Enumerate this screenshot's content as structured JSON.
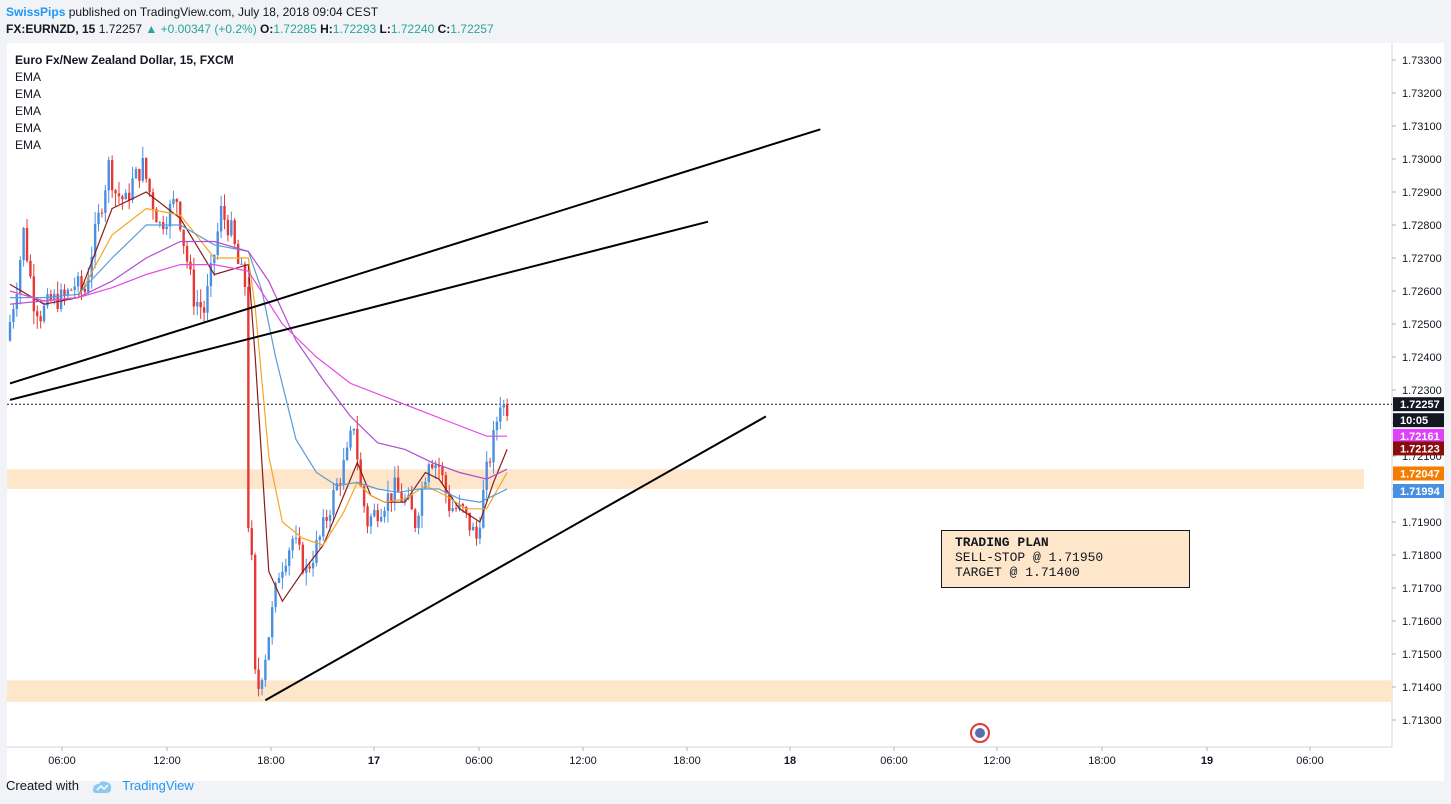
{
  "header": {
    "author": "SwissPips",
    "published_text": "published on TradingView.com, July 18, 2018 09:04 CEST",
    "symbol": "FX:EURNZD, 15",
    "last": "1.72257",
    "change": "▲ +0.00347 (+0.2%)",
    "o_label": "O:",
    "o": "1.72285",
    "h_label": "H:",
    "h": "1.72293",
    "l_label": "L:",
    "l": "1.72240",
    "c_label": "C:",
    "c": "1.72257"
  },
  "legend": {
    "title": "Euro Fx/New Zealand Dollar, 15, FXCM",
    "indicators": [
      "EMA",
      "EMA",
      "EMA",
      "EMA",
      "EMA"
    ]
  },
  "annotation": {
    "title": "TRADING PLAN",
    "line1": "SELL-STOP @ 1.71950",
    "line2": "TARGET @ 1.71400"
  },
  "footer": {
    "created_with": "Created with",
    "brand": "TradingView"
  },
  "price_labels": [
    {
      "text": "1.72257",
      "bg": "#131722"
    },
    {
      "text": "10:05",
      "bg": "#131722"
    },
    {
      "text": "1.72161",
      "bg": "#e040fb"
    },
    {
      "text": "1.72123",
      "bg": "#880e0e"
    },
    {
      "text": "1.72047",
      "bg": "#f57c00"
    },
    {
      "text": "1.71994",
      "bg": "#4a90e2"
    }
  ],
  "colors": {
    "up": "#4a90e2",
    "down": "#e53935",
    "zone": "#fde6c9",
    "ema_fast": "#8b1a1a",
    "ema_orange": "#f5a623",
    "ema_blue": "#5b9bd5",
    "ema_purple": "#b34dd1",
    "ema_magenta": "#e54ae5",
    "trendline": "#000000"
  },
  "chart_data": {
    "type": "candlestick",
    "title": "Euro Fx/New Zealand Dollar, 15, FXCM",
    "y_ticks": [
      "1.73300",
      "1.73200",
      "1.73100",
      "1.73000",
      "1.72900",
      "1.72800",
      "1.72700",
      "1.72600",
      "1.72500",
      "1.72400",
      "1.72300",
      "1.72200",
      "1.72100",
      "1.72000",
      "1.71900",
      "1.71800",
      "1.71700",
      "1.71600",
      "1.71500",
      "1.71400",
      "1.71300"
    ],
    "x_ticks": [
      "06:00",
      "12:00",
      "18:00",
      "17",
      "06:00",
      "12:00",
      "18:00",
      "18",
      "06:00",
      "12:00",
      "18:00",
      "19",
      "06:00"
    ],
    "ylim": [
      1.7127,
      1.7338
    ],
    "current_price": 1.72257,
    "zones": [
      {
        "from": 1.72,
        "to": 1.7206
      },
      {
        "from": 1.71355,
        "to": 1.7142
      }
    ],
    "price_path": [
      [
        0,
        1.7245
      ],
      [
        3,
        1.7262
      ],
      [
        5,
        1.7278
      ],
      [
        8,
        1.7257
      ],
      [
        10,
        1.7253
      ],
      [
        13,
        1.7257
      ],
      [
        17,
        1.7258
      ],
      [
        20,
        1.7262
      ],
      [
        23,
        1.726
      ],
      [
        25,
        1.7272
      ],
      [
        28,
        1.7287
      ],
      [
        30,
        1.7298
      ],
      [
        32,
        1.729
      ],
      [
        35,
        1.7287
      ],
      [
        37,
        1.7293
      ],
      [
        40,
        1.7298
      ],
      [
        42,
        1.729
      ],
      [
        45,
        1.728
      ],
      [
        47,
        1.7283
      ],
      [
        50,
        1.7288
      ],
      [
        52,
        1.7275
      ],
      [
        55,
        1.7258
      ],
      [
        58,
        1.7254
      ],
      [
        60,
        1.7265
      ],
      [
        63,
        1.7284
      ],
      [
        66,
        1.7278
      ],
      [
        68,
        1.7268
      ],
      [
        70,
        1.7262
      ],
      [
        71,
        1.719
      ],
      [
        72,
        1.7146
      ],
      [
        74,
        1.714
      ],
      [
        76,
        1.715
      ],
      [
        80,
        1.7175
      ],
      [
        84,
        1.7185
      ],
      [
        88,
        1.7175
      ],
      [
        92,
        1.7185
      ],
      [
        96,
        1.7198
      ],
      [
        100,
        1.721
      ],
      [
        102,
        1.722
      ],
      [
        104,
        1.72
      ],
      [
        106,
        1.719
      ],
      [
        110,
        1.7195
      ],
      [
        114,
        1.72
      ],
      [
        118,
        1.7195
      ],
      [
        120,
        1.719
      ],
      [
        124,
        1.721
      ],
      [
        127,
        1.7207
      ],
      [
        130,
        1.7195
      ],
      [
        134,
        1.7193
      ],
      [
        138,
        1.7185
      ],
      [
        141,
        1.7205
      ],
      [
        143,
        1.7215
      ],
      [
        145,
        1.7227
      ],
      [
        146,
        1.7225
      ]
    ],
    "emas": [
      {
        "name": "EMA",
        "color": "#8b1a1a",
        "path": [
          [
            0,
            1.7262
          ],
          [
            10,
            1.7256
          ],
          [
            20,
            1.7258
          ],
          [
            30,
            1.7285
          ],
          [
            40,
            1.729
          ],
          [
            50,
            1.7282
          ],
          [
            60,
            1.7265
          ],
          [
            70,
            1.7268
          ],
          [
            72,
            1.724
          ],
          [
            76,
            1.7175
          ],
          [
            80,
            1.7166
          ],
          [
            86,
            1.7175
          ],
          [
            92,
            1.7183
          ],
          [
            98,
            1.7198
          ],
          [
            102,
            1.7208
          ],
          [
            106,
            1.7198
          ],
          [
            110,
            1.7196
          ],
          [
            116,
            1.7196
          ],
          [
            122,
            1.7205
          ],
          [
            126,
            1.7203
          ],
          [
            132,
            1.7194
          ],
          [
            138,
            1.719
          ],
          [
            142,
            1.7202
          ],
          [
            146,
            1.7212
          ]
        ]
      },
      {
        "name": "EMA",
        "color": "#f5a623",
        "path": [
          [
            0,
            1.726
          ],
          [
            10,
            1.7257
          ],
          [
            20,
            1.7258
          ],
          [
            30,
            1.7277
          ],
          [
            40,
            1.7285
          ],
          [
            50,
            1.7283
          ],
          [
            60,
            1.727
          ],
          [
            70,
            1.727
          ],
          [
            72,
            1.7255
          ],
          [
            76,
            1.721
          ],
          [
            80,
            1.719
          ],
          [
            86,
            1.7185
          ],
          [
            92,
            1.7183
          ],
          [
            98,
            1.7193
          ],
          [
            102,
            1.7202
          ],
          [
            106,
            1.7198
          ],
          [
            110,
            1.7196
          ],
          [
            116,
            1.7197
          ],
          [
            122,
            1.7201
          ],
          [
            128,
            1.7198
          ],
          [
            134,
            1.7194
          ],
          [
            140,
            1.7194
          ],
          [
            146,
            1.7205
          ]
        ]
      },
      {
        "name": "EMA",
        "color": "#5b9bd5",
        "path": [
          [
            0,
            1.7258
          ],
          [
            10,
            1.7258
          ],
          [
            20,
            1.7259
          ],
          [
            30,
            1.727
          ],
          [
            40,
            1.728
          ],
          [
            50,
            1.728
          ],
          [
            60,
            1.7274
          ],
          [
            70,
            1.7272
          ],
          [
            74,
            1.726
          ],
          [
            78,
            1.724
          ],
          [
            84,
            1.7215
          ],
          [
            90,
            1.7205
          ],
          [
            96,
            1.7201
          ],
          [
            102,
            1.7202
          ],
          [
            108,
            1.72
          ],
          [
            114,
            1.7199
          ],
          [
            120,
            1.72
          ],
          [
            126,
            1.72
          ],
          [
            132,
            1.7197
          ],
          [
            138,
            1.7196
          ],
          [
            146,
            1.72
          ]
        ]
      },
      {
        "name": "EMA",
        "color": "#b34dd1",
        "path": [
          [
            0,
            1.7256
          ],
          [
            10,
            1.7257
          ],
          [
            20,
            1.7258
          ],
          [
            30,
            1.7263
          ],
          [
            40,
            1.727
          ],
          [
            50,
            1.7275
          ],
          [
            60,
            1.7275
          ],
          [
            70,
            1.7272
          ],
          [
            76,
            1.7263
          ],
          [
            84,
            1.7245
          ],
          [
            92,
            1.7233
          ],
          [
            100,
            1.7222
          ],
          [
            108,
            1.7214
          ],
          [
            116,
            1.7212
          ],
          [
            124,
            1.7208
          ],
          [
            132,
            1.7205
          ],
          [
            140,
            1.7203
          ],
          [
            146,
            1.7206
          ]
        ]
      },
      {
        "name": "EMA",
        "color": "#e54ae5",
        "path": [
          [
            0,
            1.726
          ],
          [
            10,
            1.7257
          ],
          [
            20,
            1.7258
          ],
          [
            30,
            1.7261
          ],
          [
            40,
            1.7265
          ],
          [
            50,
            1.7268
          ],
          [
            60,
            1.7268
          ],
          [
            70,
            1.7266
          ],
          [
            80,
            1.725
          ],
          [
            90,
            1.724
          ],
          [
            100,
            1.7232
          ],
          [
            110,
            1.7228
          ],
          [
            120,
            1.7224
          ],
          [
            130,
            1.722
          ],
          [
            140,
            1.7216
          ],
          [
            146,
            1.7216
          ]
        ]
      }
    ],
    "trendlines": [
      {
        "from": [
          0,
          1.7232
        ],
        "to": [
          238,
          1.7309
        ]
      },
      {
        "from": [
          0,
          1.7227
        ],
        "to": [
          205,
          1.7281
        ]
      },
      {
        "from": [
          75,
          1.7136
        ],
        "to": [
          222,
          1.7222
        ]
      }
    ]
  }
}
